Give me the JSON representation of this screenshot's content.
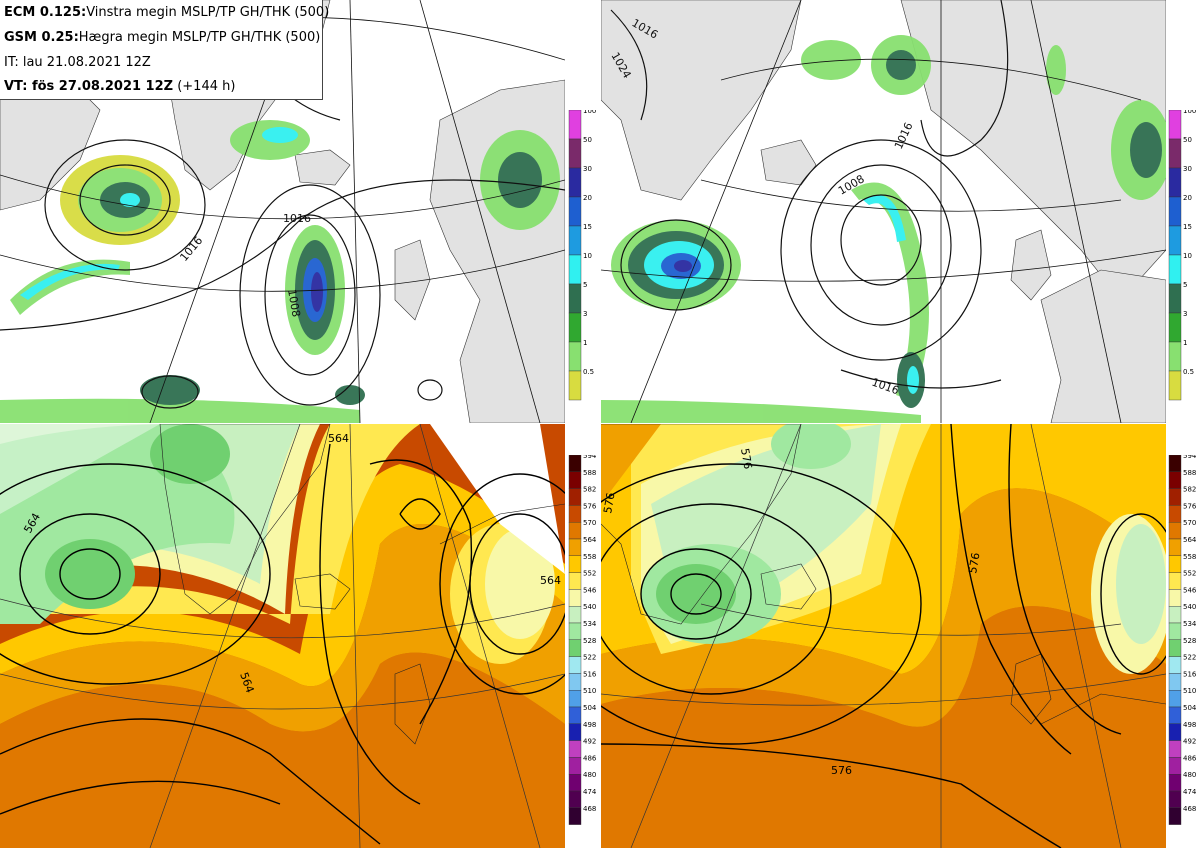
{
  "info": {
    "line1_model": "ECM 0.125:",
    "line1_desc": "Vinstra megin MSLP/TP GH/THK (500)",
    "line2_model": "GSM 0.25:",
    "line2_desc": "Hægra megin MSLP/TP GH/THK (500)",
    "line3": "IT: lau 21.08.2021 12Z",
    "line4_bold": "VT: fös 27.08.2021 12Z",
    "line4_rest": " (+144 h)"
  },
  "precip_legend": {
    "labels": [
      "100",
      "50",
      "30",
      "20",
      "15",
      "10",
      "5",
      "3",
      "1",
      "0.5"
    ],
    "colors": [
      "#e040e0",
      "#7a2a6a",
      "#2a2aa0",
      "#1e5fd0",
      "#1e9be0",
      "#30f0f0",
      "#2f6f50",
      "#30a830",
      "#88e070",
      "#d8dc40"
    ]
  },
  "thk_legend": {
    "labels": [
      "594",
      "588",
      "582",
      "576",
      "570",
      "564",
      "558",
      "552",
      "546",
      "540",
      "534",
      "528",
      "522",
      "516",
      "510",
      "504",
      "498",
      "492",
      "486",
      "480",
      "474",
      "468"
    ],
    "colors": [
      "#3a0000",
      "#7a0000",
      "#a02000",
      "#c84a00",
      "#e07800",
      "#f0a000",
      "#ffc800",
      "#ffe850",
      "#f8f8a8",
      "#c8f0c0",
      "#a0e8a0",
      "#70d070",
      "#a0e8f0",
      "#80c8f0",
      "#50a0e8",
      "#3060d8",
      "#1820b0",
      "#c040c0",
      "#a020a0",
      "#700070",
      "#500050",
      "#300030"
    ]
  },
  "isobars": {
    "ecm_top": [
      "1016",
      "1008",
      "1016"
    ],
    "gsm_top": [
      "1016",
      "1008",
      "1016",
      "1016",
      "1024"
    ],
    "ecm_bottom": [
      "564",
      "564",
      "564",
      "564"
    ],
    "gsm_bottom": [
      "576",
      "576",
      "576",
      "576"
    ]
  },
  "colors": {
    "land": "#e2e2e2",
    "sea": "#ffffff"
  }
}
